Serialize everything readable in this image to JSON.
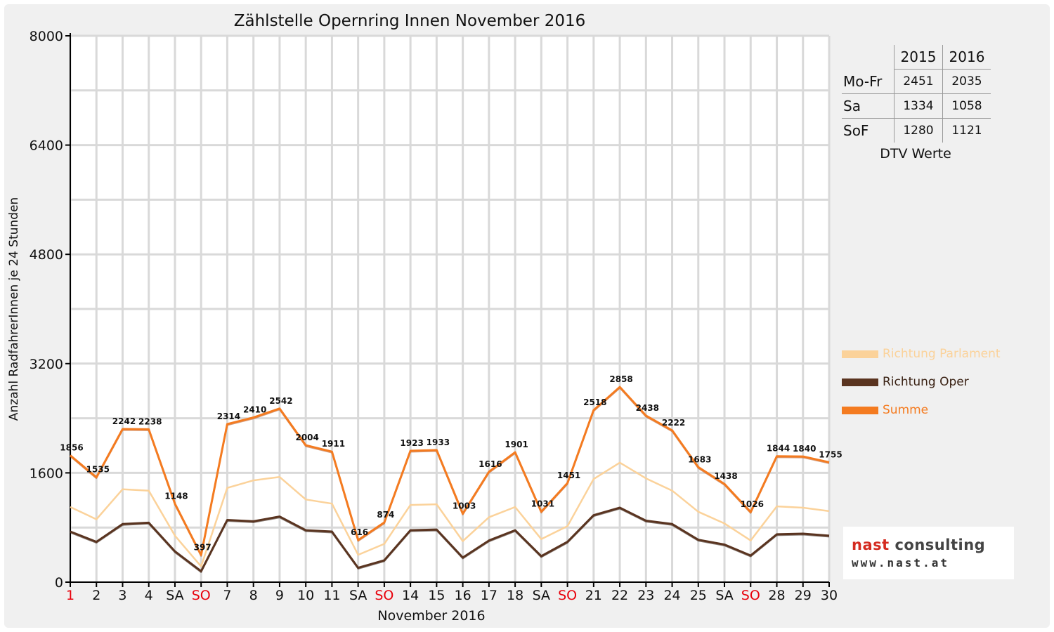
{
  "chart_data": {
    "type": "line",
    "title": "Zählstelle Opernring Innen November 2016",
    "xlabel": "November 2016",
    "ylabel": "Anzahl RadfahrerInnen je 24 Stunden",
    "ylim": [
      0,
      8000
    ],
    "yticks": [
      0,
      1600,
      3200,
      4800,
      6400,
      8000
    ],
    "grid": true,
    "legend_position": "right",
    "categories": [
      "1",
      "2",
      "3",
      "4",
      "SA",
      "SO",
      "7",
      "8",
      "9",
      "10",
      "11",
      "SA",
      "SO",
      "14",
      "15",
      "16",
      "17",
      "18",
      "SA",
      "SO",
      "21",
      "22",
      "23",
      "24",
      "25",
      "SA",
      "SO",
      "28",
      "29",
      "30"
    ],
    "red_categories": [
      0,
      5,
      12,
      19,
      26
    ],
    "series": [
      {
        "name": "Richtung Parlament",
        "color": "#fbd29a",
        "values": [
          1100,
          920,
          1360,
          1340,
          680,
          230,
          1380,
          1490,
          1540,
          1210,
          1150,
          400,
          560,
          1130,
          1140,
          600,
          950,
          1100,
          630,
          820,
          1510,
          1750,
          1520,
          1340,
          1030,
          860,
          610,
          1110,
          1090,
          1040
        ]
      },
      {
        "name": "Richtung Oper",
        "color": "#5a3420",
        "values": [
          740,
          590,
          850,
          870,
          450,
          160,
          910,
          890,
          960,
          760,
          740,
          210,
          320,
          760,
          770,
          360,
          610,
          760,
          380,
          590,
          980,
          1090,
          900,
          850,
          620,
          550,
          390,
          700,
          710,
          680
        ]
      },
      {
        "name": "Summe",
        "color": "#f47b20",
        "values": [
          1856,
          1535,
          2242,
          2238,
          1148,
          397,
          2314,
          2410,
          2542,
          2004,
          1911,
          616,
          874,
          1923,
          1933,
          1003,
          1616,
          1901,
          1031,
          1451,
          2518,
          2858,
          2438,
          2222,
          1683,
          1438,
          1026,
          1844,
          1840,
          1755
        ]
      }
    ],
    "data_labels_series": "Summe"
  },
  "dtv_table": {
    "col_headers": [
      "2015",
      "2016"
    ],
    "rows": [
      {
        "label": "Mo-Fr",
        "v2015": "2451",
        "v2016": "2035"
      },
      {
        "label": "Sa",
        "v2015": "1334",
        "v2016": "1058"
      },
      {
        "label": "SoF",
        "v2015": "1280",
        "v2016": "1121"
      }
    ],
    "caption": "DTV Werte"
  },
  "logo": {
    "name_part1": "nast",
    "name_part2": "consulting",
    "url": "www.nast.at",
    "colors": {
      "accent": "#d42b20",
      "text": "#444444"
    }
  }
}
